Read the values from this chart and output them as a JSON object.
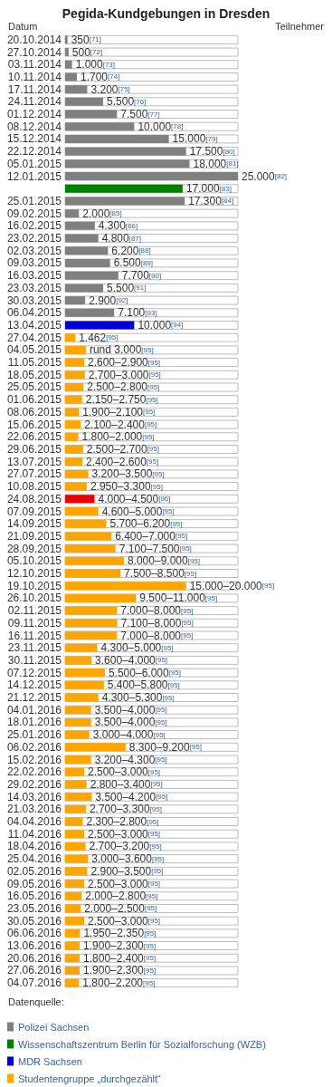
{
  "chart_data": {
    "type": "bar",
    "orientation": "horizontal",
    "title": "Pegida-Kundgebungen in Dresden",
    "xlabel": "Teilnehmer",
    "ylabel": "Datum",
    "legend_title": "Datenquelle:",
    "legend": "bottom left",
    "grid": false,
    "categories": [
      "20.10.2014",
      "27.10.2014",
      "03.11.2014",
      "10.11.2014",
      "17.11.2014",
      "24.11.2014",
      "01.12.2014",
      "08.12.2014",
      "15.12.2014",
      "22.12.2014",
      "05.01.2015",
      "12.01.2015",
      null,
      "25.01.2015",
      "09.02.2015",
      "16.02.2015",
      "23.02.2015",
      "02.03.2015",
      "09.03.2015",
      "16.03.2015",
      "23.03.2015",
      "30.03.2015",
      "06.04.2015",
      "13.04.2015",
      "27.04.2015",
      "04.05.2015",
      "11.05.2015",
      "18.05.2015",
      "25.05.2015",
      "01.06.2015",
      "08.06.2015",
      "15.06.2015",
      "22.06.2015",
      "29.06.2015",
      "13.07.2015",
      "27.07.2015",
      "10.08.2015",
      "24.08.2015",
      "07.09.2015",
      "14.09.2015",
      "21.09.2015",
      "28.09.2015",
      "05.10.2015",
      "12.10.2015",
      "19.10.2015",
      "26.10.2015",
      "02.11.2015",
      "09.11.2015",
      "16.11.2015",
      "23.11.2015",
      "30.11.2015",
      "07.12.2015",
      "14.12.2015",
      "21.12.2015",
      "04.01.2016",
      "18.01.2016",
      "25.01.2016",
      "06.02.2016",
      "15.02.2016",
      "22.02.2016",
      "29.02.2016",
      "14.03.2016",
      "21.03.2016",
      "04.04.2016",
      "11.04.2016",
      "18.04.2016",
      "25.04.2016",
      "02.05.2016",
      "09.05.2016",
      "16.05.2016",
      "23.05.2016",
      "30.05.2016",
      "06.06.2016",
      "13.06.2016",
      "20.06.2016",
      "27.06.2016",
      "04.07.2016"
    ],
    "series": [
      {
        "name": "Polizei Sachsen",
        "color": "#808080",
        "values": [
          350,
          500,
          1000,
          1700,
          3200,
          5500,
          7500,
          10000,
          15000,
          17500,
          18000,
          25000,
          null,
          17300,
          2000,
          4300,
          4800,
          6200,
          6500,
          7700,
          5500,
          2900,
          7100,
          null,
          null,
          null,
          null,
          null,
          null,
          null,
          null,
          null,
          null,
          null,
          null,
          null,
          null,
          null,
          null,
          null,
          null,
          null,
          null,
          null,
          null,
          null,
          null,
          null,
          null,
          null,
          null,
          null,
          null,
          null,
          null,
          null,
          null,
          null,
          null,
          null,
          null,
          null,
          null,
          null,
          null,
          null,
          null,
          null,
          null,
          null,
          null,
          null,
          null,
          null,
          null,
          null,
          null
        ],
        "value_labels": [
          "350$^{[71]}$",
          "500$^{[72]}$",
          "1.000$^{[73]}$",
          "1.700$^{[74]}$",
          "3.200$^{[75]}$",
          "5.500$^{[76]}$",
          "7.500$^{[77]}$",
          "10.000$^{[78]}$",
          "15.000$^{[79]}$",
          "17.500$^{[80]}$",
          "18.000$^{[81]}$",
          "25.000$^{[82]}$",
          null,
          "17.300$^{[84]}$",
          "2.000$^{[85]}$",
          "4.300$^{[86]}$",
          "4.800$^{[87]}$",
          "6.200$^{[88]}$",
          "6.500$^{[89]}$",
          "7.700$^{[90]}$",
          "5.500$^{[91]}$",
          "2.900$^{[92]}$",
          "7.100$^{[93]}$",
          null,
          null,
          null,
          null,
          null,
          null,
          null,
          null,
          null,
          null,
          null,
          null,
          null,
          null,
          null,
          null,
          null,
          null,
          null,
          null,
          null,
          null,
          null,
          null,
          null,
          null,
          null,
          null,
          null,
          null,
          null,
          null,
          null,
          null,
          null,
          null,
          null,
          null,
          null,
          null,
          null,
          null,
          null,
          null,
          null,
          null,
          null,
          null,
          null,
          null,
          null,
          null,
          null,
          null
        ]
      },
      {
        "name": "Wissenschaftszentrum Berlin für Sozialforschung (WZB)",
        "color": "#008000",
        "values": [
          null,
          null,
          null,
          null,
          null,
          null,
          null,
          null,
          null,
          null,
          null,
          null,
          17000,
          null,
          null,
          null,
          null,
          null,
          null,
          null,
          null,
          null,
          null,
          null,
          null,
          null,
          null,
          null,
          null,
          null,
          null,
          null,
          null,
          null,
          null,
          null,
          null,
          null,
          null,
          null,
          null,
          null,
          null,
          null,
          null,
          null,
          null,
          null,
          null,
          null,
          null,
          null,
          null,
          null,
          null,
          null,
          null,
          null,
          null,
          null,
          null,
          null,
          null,
          null,
          null,
          null,
          null,
          null,
          null,
          null,
          null,
          null,
          null,
          null,
          null,
          null,
          null
        ],
        "value_labels": [
          null,
          null,
          null,
          null,
          null,
          null,
          null,
          null,
          null,
          null,
          null,
          null,
          "17.000$^{[83]}$",
          null,
          null,
          null,
          null,
          null,
          null,
          null,
          null,
          null,
          null,
          null,
          null,
          null,
          null,
          null,
          null,
          null,
          null,
          null,
          null,
          null,
          null,
          null,
          null,
          null,
          null,
          null,
          null,
          null,
          null,
          null,
          null,
          null,
          null,
          null,
          null,
          null,
          null,
          null,
          null,
          null,
          null,
          null,
          null,
          null,
          null,
          null,
          null,
          null,
          null,
          null,
          null,
          null,
          null,
          null,
          null,
          null,
          null,
          null,
          null,
          null,
          null,
          null,
          null
        ]
      },
      {
        "name": "MDR Sachsen",
        "color": "#0000dd",
        "values": [
          null,
          null,
          null,
          null,
          null,
          null,
          null,
          null,
          null,
          null,
          null,
          null,
          null,
          null,
          null,
          null,
          null,
          null,
          null,
          null,
          null,
          null,
          null,
          10000,
          null,
          null,
          null,
          null,
          null,
          null,
          null,
          null,
          null,
          null,
          null,
          null,
          null,
          null,
          null,
          null,
          null,
          null,
          null,
          null,
          null,
          null,
          null,
          null,
          null,
          null,
          null,
          null,
          null,
          null,
          null,
          null,
          null,
          null,
          null,
          null,
          null,
          null,
          null,
          null,
          null,
          null,
          null,
          null,
          null,
          null,
          null,
          null,
          null,
          null,
          null,
          null,
          null
        ],
        "value_labels": [
          null,
          null,
          null,
          null,
          null,
          null,
          null,
          null,
          null,
          null,
          null,
          null,
          null,
          null,
          null,
          null,
          null,
          null,
          null,
          null,
          null,
          null,
          null,
          "10.000$^{[94]}$",
          null,
          null,
          null,
          null,
          null,
          null,
          null,
          null,
          null,
          null,
          null,
          null,
          null,
          null,
          null,
          null,
          null,
          null,
          null,
          null,
          null,
          null,
          null,
          null,
          null,
          null,
          null,
          null,
          null,
          null,
          null,
          null,
          null,
          null,
          null,
          null,
          null,
          null,
          null,
          null,
          null,
          null,
          null,
          null,
          null,
          null,
          null,
          null,
          null,
          null,
          null,
          null,
          null
        ]
      },
      {
        "color": "#ee0000",
        "values": [
          null,
          null,
          null,
          null,
          null,
          null,
          null,
          null,
          null,
          null,
          null,
          null,
          null,
          null,
          null,
          null,
          null,
          null,
          null,
          null,
          null,
          null,
          null,
          null,
          null,
          null,
          null,
          null,
          null,
          null,
          null,
          null,
          null,
          null,
          null,
          null,
          null,
          4250,
          null,
          null,
          null,
          null,
          null,
          null,
          null,
          null,
          null,
          null,
          null,
          null,
          null,
          null,
          null,
          null,
          null,
          null,
          null,
          null,
          null,
          null,
          null,
          null,
          null,
          null,
          null,
          null,
          null,
          null,
          null,
          null,
          null,
          null,
          null,
          null,
          null,
          null,
          null
        ],
        "value_labels": [
          null,
          null,
          null,
          null,
          null,
          null,
          null,
          null,
          null,
          null,
          null,
          null,
          null,
          null,
          null,
          null,
          null,
          null,
          null,
          null,
          null,
          null,
          null,
          null,
          null,
          null,
          null,
          null,
          null,
          null,
          null,
          null,
          null,
          null,
          null,
          null,
          null,
          "4.000–4.500$^{[96]}$",
          null,
          null,
          null,
          null,
          null,
          null,
          null,
          null,
          null,
          null,
          null,
          null,
          null,
          null,
          null,
          null,
          null,
          null,
          null,
          null,
          null,
          null,
          null,
          null,
          null,
          null,
          null,
          null,
          null,
          null,
          null,
          null,
          null,
          null,
          null,
          null,
          null,
          null,
          null
        ]
      },
      {
        "name": "Studentengruppe „durchgezählt“",
        "color": "#ffa500",
        "values": [
          null,
          null,
          null,
          null,
          null,
          null,
          null,
          null,
          null,
          null,
          null,
          null,
          null,
          null,
          null,
          null,
          null,
          null,
          null,
          null,
          null,
          null,
          null,
          null,
          1462,
          3000,
          2750,
          2850,
          2650,
          2450,
          2000,
          2250,
          1900,
          2600,
          2500,
          3350,
          3125,
          null,
          4800,
          5950,
          6700,
          7300,
          8500,
          8000,
          17500,
          10250,
          7500,
          7550,
          7500,
          4650,
          3800,
          5750,
          5600,
          4800,
          3750,
          3750,
          3500,
          8750,
          3750,
          2750,
          3100,
          3850,
          3000,
          2550,
          2750,
          2950,
          3300,
          3200,
          2750,
          2400,
          2250,
          2750,
          2150,
          2100,
          2100,
          2100,
          2000
        ],
        "value_labels": [
          null,
          null,
          null,
          null,
          null,
          null,
          null,
          null,
          null,
          null,
          null,
          null,
          null,
          null,
          null,
          null,
          null,
          null,
          null,
          null,
          null,
          null,
          null,
          null,
          "1.462$^{[95]}$",
          "rund 3.000$^{[95]}$",
          "2.600–2.900$^{[95]}$",
          "2.700–3.000$^{[95]}$",
          "2.500–2.800$^{[95]}$",
          "2.150–2.750$^{[95]}$",
          "1.900–2.100$^{[95]}$",
          "2.100–2.400$^{[95]}$",
          "1.800–2.000$^{[95]}$",
          "2.500–2.700$^{[95]}$",
          "2.400–2.600$^{[95]}$",
          "3.200–3.500$^{[95]}$",
          "2.950–3.300$^{[95]}$",
          null,
          "4.600–5.000$^{[95]}$",
          "5.700–6.200$^{[95]}$",
          "6.400–7.000$^{[95]}$",
          "7.100–7.500$^{[95]}$",
          "8.000–9.000$^{[95]}$",
          "7.500–8.500$^{[95]}$",
          "15.000–20.000$^{[95]}$",
          "9.500–11.000$^{[95]}$",
          "7.000–8.000$^{[95]}$",
          "7.100–8.000$^{[95]}$",
          "7.000–8.000$^{[95]}$",
          "4.300–5.000$^{[95]}$",
          "3.600–4.000$^{[95]}$",
          "5.500–6.000$^{[95]}$",
          "5.400–5.800$^{[95]}$",
          "4.300–5.300$^{[95]}$",
          "3.500–4.000$^{[95]}$",
          "3.500–4.000$^{[95]}$",
          "3.000–4.000$^{[95]}$",
          "8.300–9.200$^{[95]}$",
          "3.200–4.300$^{[95]}$",
          "2.500–3.000$^{[95]}$",
          "2.800–3.400$^{[95]}$",
          "3.500–4.200$^{[95]}$",
          "2.700–3.300$^{[95]}$",
          "2.300–2.800$^{[95]}$",
          "2.500–3.000$^{[95]}$",
          "2.700–3.200$^{[95]}$",
          "3.000–3.600$^{[95]}$",
          "2.900–3.500$^{[95]}$",
          "2.500–3.000$^{[95]}$",
          "2.000–2.800$^{[95]}$",
          "2.000–2.500$^{[95]}$",
          "2.500–3.000$^{[95]}$",
          "1.950–2.350$^{[95]}$",
          "1.900–2.300$^{[95]}$",
          "1.800–2.400$^{[95]}$",
          "1.900–2.300$^{[95]}$",
          "1.800–2.200$^{[95]}$"
        ]
      }
    ]
  }
}
